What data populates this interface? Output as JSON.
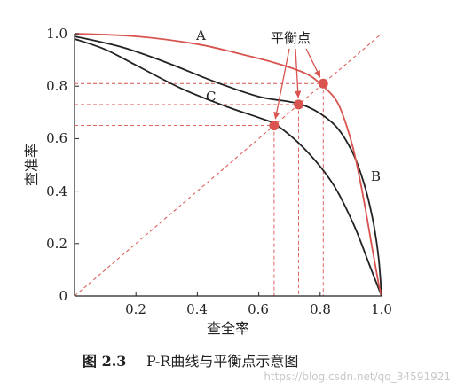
{
  "chart_data": {
    "type": "line",
    "xlabel": "查全率",
    "ylabel": "查准率",
    "xlim": [
      0,
      1.0
    ],
    "ylim": [
      0,
      1.0
    ],
    "x_ticks": [
      "0.2",
      "0.4",
      "0.6",
      "0.8",
      "1.0"
    ],
    "y_ticks": [
      "0",
      "0.2",
      "0.4",
      "0.6",
      "0.8",
      "1.0"
    ],
    "grid": false,
    "series": [
      {
        "name": "A",
        "color": "#d9534f",
        "points": [
          [
            0.0,
            1.0
          ],
          [
            0.2,
            0.99
          ],
          [
            0.4,
            0.96
          ],
          [
            0.55,
            0.92
          ],
          [
            0.65,
            0.89
          ],
          [
            0.75,
            0.85
          ],
          [
            0.8,
            0.81
          ],
          [
            0.85,
            0.75
          ],
          [
            0.88,
            0.67
          ],
          [
            0.91,
            0.55
          ],
          [
            0.94,
            0.38
          ],
          [
            0.97,
            0.18
          ],
          [
            0.99,
            0.05
          ],
          [
            1.0,
            0.0
          ]
        ]
      },
      {
        "name": "B",
        "color": "#222222",
        "points": [
          [
            0.0,
            0.99
          ],
          [
            0.15,
            0.95
          ],
          [
            0.3,
            0.89
          ],
          [
            0.45,
            0.82
          ],
          [
            0.6,
            0.76
          ],
          [
            0.74,
            0.73
          ],
          [
            0.84,
            0.66
          ],
          [
            0.9,
            0.56
          ],
          [
            0.94,
            0.44
          ],
          [
            0.97,
            0.3
          ],
          [
            0.99,
            0.15
          ],
          [
            1.0,
            0.0
          ]
        ]
      },
      {
        "name": "C",
        "color": "#222222",
        "points": [
          [
            0.0,
            0.98
          ],
          [
            0.1,
            0.94
          ],
          [
            0.2,
            0.88
          ],
          [
            0.35,
            0.79
          ],
          [
            0.5,
            0.72
          ],
          [
            0.6,
            0.68
          ],
          [
            0.66,
            0.65
          ],
          [
            0.75,
            0.56
          ],
          [
            0.84,
            0.43
          ],
          [
            0.91,
            0.27
          ],
          [
            0.96,
            0.12
          ],
          [
            1.0,
            0.0
          ]
        ]
      }
    ],
    "reference_line": {
      "from": [
        0,
        0
      ],
      "to": [
        1.0,
        1.0
      ],
      "style": "dashed",
      "color": "#d9534f"
    },
    "break_even_points": [
      {
        "series": "C",
        "value": 0.65
      },
      {
        "series": "B",
        "value": 0.73
      },
      {
        "series": "A",
        "value": 0.81
      }
    ],
    "annotation": "平衡点",
    "point_color": "#d9534f"
  },
  "caption": {
    "number": "图 2.3",
    "text": "P-R曲线与平衡点示意图"
  },
  "watermark": "https://blog.csdn.net/qq_34591921"
}
